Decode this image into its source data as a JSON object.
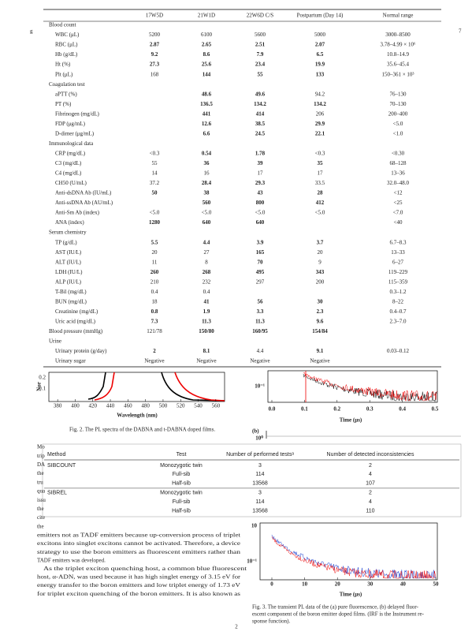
{
  "page": {
    "margin_marks": [
      "g",
      "7"
    ],
    "lab_table": {
      "columns": [
        "17W5D",
        "21W1D",
        "22W6D C/S",
        "Postpartum (Day 14)",
        "Normal range"
      ],
      "rows": [
        {
          "section": "Blood count"
        },
        {
          "label": "WBC (μL)",
          "cells": [
            "5200",
            "6100",
            "5600",
            "5000",
            "3000–8500"
          ],
          "bold": []
        },
        {
          "label": "RBC (μL)",
          "cells": [
            "2.87",
            "2.65",
            "2.51",
            "2.07",
            "3.78–4.99 × 10⁶"
          ],
          "bold": [
            0,
            1,
            2,
            3
          ]
        },
        {
          "label": "Hb (g/dL)",
          "cells": [
            "9.2",
            "8.6",
            "7.9",
            "6.5",
            "10.8–14.9"
          ],
          "bold": [
            0,
            1,
            2,
            3
          ]
        },
        {
          "label": "Ht (%)",
          "cells": [
            "27.3",
            "25.6",
            "23.4",
            "19.9",
            "35.6–45.4"
          ],
          "bold": [
            0,
            1,
            2,
            3
          ]
        },
        {
          "label": "Plt (μL)",
          "cells": [
            "168",
            "144",
            "55",
            "133",
            "150–361 × 10³"
          ],
          "bold": [
            1,
            2,
            3
          ]
        },
        {
          "section": "Coagulation test"
        },
        {
          "label": "aPTT (%)",
          "cells": [
            null,
            "48.6",
            "49.6",
            "94.2",
            "76–130"
          ],
          "bold": [
            1,
            2
          ]
        },
        {
          "label": "PT (%)",
          "cells": [
            null,
            "136.5",
            "134.2",
            "134.2",
            "70–130"
          ],
          "bold": [
            1,
            2,
            3
          ]
        },
        {
          "label": "Fibrinogen (mg/dL)",
          "cells": [
            null,
            "441",
            "414",
            "206",
            "200–400"
          ],
          "bold": [
            1,
            2
          ]
        },
        {
          "label": "FDP (μg/mL)",
          "cells": [
            null,
            "12.6",
            "38.5",
            "29.9",
            "<5.0"
          ],
          "bold": [
            1,
            2,
            3
          ]
        },
        {
          "label": "D-dimer (μg/mL)",
          "cells": [
            null,
            "6.6",
            "24.5",
            "22.1",
            "<1.0"
          ],
          "bold": [
            1,
            2,
            3
          ]
        },
        {
          "section": "Immunological data"
        },
        {
          "label": "CRP (mg/dL)",
          "cells": [
            "<0.3",
            "0.54",
            "1.78",
            "<0.3",
            "<0.30"
          ],
          "bold": [
            1,
            2
          ]
        },
        {
          "label": "C3 (mg/dL)",
          "cells": [
            "55",
            "36",
            "39",
            "35",
            "68–128"
          ],
          "bold": [
            1,
            2,
            3
          ]
        },
        {
          "label": "C4 (mg/dL)",
          "cells": [
            "14",
            "16",
            "17",
            "17",
            "13–36"
          ],
          "bold": []
        },
        {
          "label": "CH50 (U/mL)",
          "cells": [
            "37.2",
            "28.4",
            "29.3",
            "33.5",
            "32.0–48.0"
          ],
          "bold": [
            1,
            2
          ]
        },
        {
          "label": "Anti-dsDNA Ab (IU/mL)",
          "cells": [
            "50",
            "38",
            "43",
            "28",
            "<12"
          ],
          "bold": [
            0,
            1,
            2,
            3
          ]
        },
        {
          "label": "Anti-ssDNA Ab (AU/mL)",
          "cells": [
            null,
            "560",
            "800",
            "412",
            "<25"
          ],
          "bold": [
            1,
            2,
            3
          ]
        },
        {
          "label": "Anti-Sm Ab (index)",
          "cells": [
            "<5.0",
            "<5.0",
            "<5.0",
            "<5.0",
            "<7.0"
          ],
          "bold": []
        },
        {
          "label": "ANA (index)",
          "cells": [
            "1280",
            "640",
            "640",
            null,
            "<40"
          ],
          "bold": [
            0,
            1,
            2
          ]
        },
        {
          "section": "Serum chemistry"
        },
        {
          "label": "TP (g/dL)",
          "cells": [
            "5.5",
            "4.4",
            "3.9",
            "3.7",
            "6.7–8.3"
          ],
          "bold": [
            0,
            1,
            2,
            3
          ]
        },
        {
          "label": "AST (IU/L)",
          "cells": [
            "20",
            "27",
            "165",
            "20",
            "13–33"
          ],
          "bold": [
            2
          ]
        },
        {
          "label": "ALT (IU/L)",
          "cells": [
            "11",
            "8",
            "70",
            "9",
            "6–27"
          ],
          "bold": [
            2
          ]
        },
        {
          "label": "LDH (IU/L)",
          "cells": [
            "260",
            "268",
            "495",
            "343",
            "119–229"
          ],
          "bold": [
            0,
            1,
            2,
            3
          ]
        },
        {
          "label": "ALP (IU/L)",
          "cells": [
            "210",
            "232",
            "297",
            "200",
            "115–359"
          ],
          "bold": []
        },
        {
          "label": "T-Bil (mg/dL)",
          "cells": [
            "0.4",
            "0.4",
            null,
            null,
            "0.3–1.2"
          ],
          "bold": []
        },
        {
          "label": "BUN (mg/dL)",
          "cells": [
            "18",
            "41",
            "56",
            "30",
            "8–22"
          ],
          "bold": [
            1,
            2,
            3
          ]
        },
        {
          "label": "Creatinine (mg/dL)",
          "cells": [
            "0.8",
            "1.9",
            "3.3",
            "2.3",
            "0.4–0.7"
          ],
          "bold": [
            0,
            1,
            2,
            3
          ]
        },
        {
          "label": "Uric acid (mg/dL)",
          "cells": [
            "7.3",
            "11.3",
            "11.3",
            "9.6",
            "2.3–7.0"
          ],
          "bold": [
            0,
            1,
            2,
            3
          ]
        },
        {
          "label": "Blood pressure (mmHg)",
          "cells": [
            "121/78",
            "150/80",
            "160/95",
            "154/84",
            null
          ],
          "bold": [
            1,
            2,
            3
          ],
          "top": true
        },
        {
          "section": "Urine"
        },
        {
          "label": "Urinary protein (g/day)",
          "cells": [
            "2",
            "8.1",
            "4.4",
            "9.1",
            "0.03–0.12"
          ],
          "bold": [
            0,
            1,
            3
          ]
        },
        {
          "label": "Urinary sugar",
          "cells": [
            "Negative",
            "Negative",
            "Negative",
            "Negative",
            null
          ],
          "bold": []
        }
      ]
    },
    "fig2": {
      "y_label": "Nor",
      "y_labels": [
        "0.2",
        "0.1"
      ],
      "xticks": [
        380,
        400,
        420,
        440,
        460,
        480,
        500,
        520,
        540,
        560
      ],
      "xlim": [
        370,
        570
      ],
      "x_label": "Wavelength (nm)",
      "caption": "Fig. 2. The PL spectra of the DABNA and t-DABNA doped films."
    },
    "decay_top": {
      "y_labels": [
        "10⁻¹"
      ],
      "xticks": [
        {
          "value": 0,
          "label": "0.0"
        },
        0.1,
        0.2,
        0.3,
        0.4,
        0.5
      ],
      "xlim": [
        0,
        0.5
      ],
      "x_label": "Time (μs)",
      "panel": "(b)",
      "next_y_label": "10⁰"
    },
    "stats_table": {
      "columns": [
        "Method",
        "Test",
        "Number of performed testsᵃ",
        "Number of detected inconsistencies"
      ],
      "rows": [
        [
          "SIBCOUNT",
          "Monozygotic twin",
          "3",
          "2"
        ],
        [
          null,
          "Full-sib",
          "114",
          "4"
        ],
        [
          null,
          "Half-sib",
          "13568",
          "107"
        ],
        [
          "SIBREL",
          "Monozygotic twin",
          "3",
          "2"
        ],
        [
          null,
          "Full-sib",
          "114",
          "4"
        ],
        [
          null,
          "Half-sib",
          "13568",
          "110"
        ]
      ]
    },
    "left_fragments": [
      "Mo",
      "trip",
      "DA",
      "the",
      "tru",
      "qua",
      "issu",
      "the",
      "cite",
      "the"
    ],
    "body_lines": [
      "emitters not as TADF emitters because up-conversion process of triplet",
      "excitons into singlet excitons cannot be activated. Therefore, a device",
      "strategy to use the boron emitters as fluorescent emitters rather than",
      "TADF emitters was developed.",
      "As the triplet exciton quenching host, a common blue fluorescent",
      "host, α-ADN, was used because it has high singlet energy of 3.15 eV for",
      "energy transfer to the boron emitters and low triplet energy of 1.73 eV",
      "for triplet exciton quenching of the boron emitters. It is also known as"
    ],
    "fig3": {
      "y_labels": [
        "10",
        "10⁻¹"
      ],
      "xticks": [
        0,
        10,
        20,
        30,
        40,
        50
      ],
      "xlim": [
        0,
        50
      ],
      "x_label": "Time (μs)",
      "caption_lines": [
        "Fig. 3. The transient PL data of the (a) pure fluorescence, (b) delayed fluor-",
        "escent component of the boron emitter doped films. (IRF is the Instrument re-",
        "sponse function)."
      ]
    },
    "page_number": "2"
  }
}
